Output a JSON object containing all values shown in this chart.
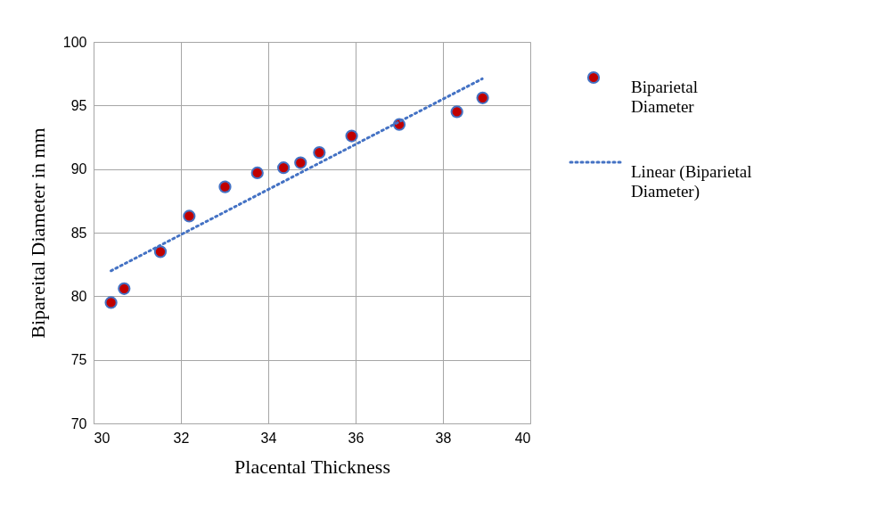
{
  "chart_data": {
    "type": "scatter",
    "xlabel": "Placental Thickness",
    "ylabel": "Bipareital Diameter in mm",
    "xlim": [
      30,
      40
    ],
    "xticks": [
      30,
      32,
      34,
      36,
      38,
      40
    ],
    "ylim": [
      70,
      100
    ],
    "yticks": [
      70,
      75,
      80,
      85,
      90,
      95,
      100
    ],
    "grid": true,
    "legend": "right",
    "marker": "circle",
    "series": [
      {
        "name": "Biparietal Diameter",
        "color": "#c00000",
        "x": [
          30.4,
          30.7,
          31.53,
          32.19,
          33.01,
          33.75,
          34.35,
          34.74,
          35.17,
          35.91,
          37.0,
          38.32,
          38.91
        ],
        "values": [
          79.5,
          80.6,
          83.5,
          86.3,
          88.6,
          89.7,
          90.1,
          90.5,
          91.3,
          92.6,
          93.5,
          94.5,
          95.6
        ]
      },
      {
        "name": "Linear (Biparietal Diameter)",
        "type": "line",
        "line_style": "dotted",
        "marker": "none",
        "color": "#4472c4",
        "x": [
          30.4,
          38.9
        ],
        "values": [
          82.0,
          97.1
        ]
      }
    ]
  }
}
